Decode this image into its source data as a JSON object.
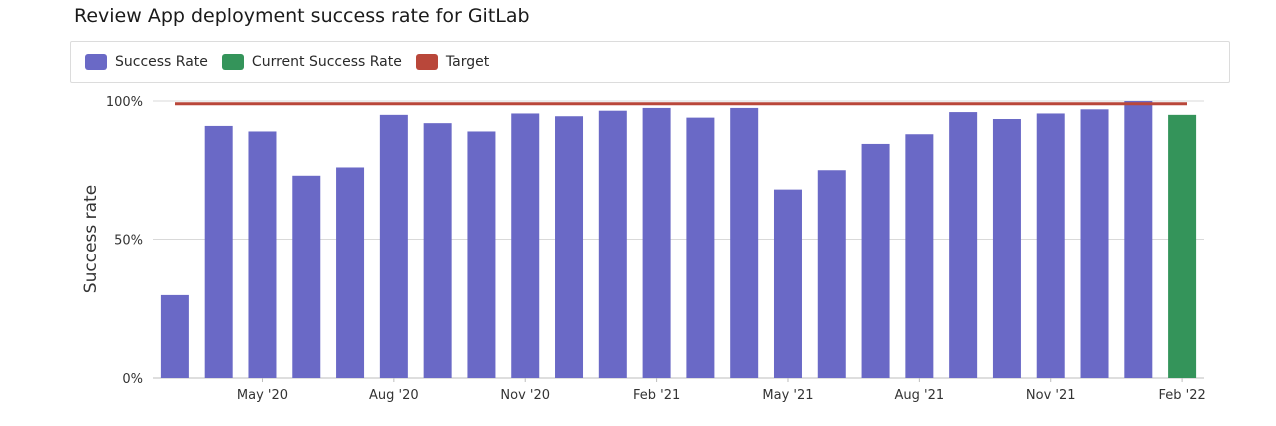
{
  "chart_data": {
    "type": "bar",
    "title": "Review App deployment success rate for GitLab",
    "xlabel": "",
    "ylabel": "Success rate",
    "ylim": [
      0,
      100
    ],
    "y_ticks": [
      {
        "value": 0,
        "label": "0%"
      },
      {
        "value": 50,
        "label": "50%"
      },
      {
        "value": 100,
        "label": "100%"
      }
    ],
    "grid": true,
    "legend": "top",
    "legend_entries": [
      {
        "name": "Success Rate",
        "color": "#6a69c6"
      },
      {
        "name": "Current Success Rate",
        "color": "#34945a"
      },
      {
        "name": "Target",
        "color": "#b9473a"
      }
    ],
    "categories": [
      "Mar '20",
      "Apr '20",
      "May '20",
      "Jun '20",
      "Jul '20",
      "Aug '20",
      "Sep '20",
      "Oct '20",
      "Nov '20",
      "Dec '20",
      "Jan '21",
      "Feb '21",
      "Mar '21",
      "Apr '21",
      "May '21",
      "Jun '21",
      "Jul '21",
      "Aug '21",
      "Sep '21",
      "Oct '21",
      "Nov '21",
      "Dec '21",
      "Jan '22",
      "Feb '22"
    ],
    "x_tick_labels": [
      {
        "index": 2,
        "label": "May '20"
      },
      {
        "index": 5,
        "label": "Aug '20"
      },
      {
        "index": 8,
        "label": "Nov '20"
      },
      {
        "index": 11,
        "label": "Feb '21"
      },
      {
        "index": 14,
        "label": "May '21"
      },
      {
        "index": 17,
        "label": "Aug '21"
      },
      {
        "index": 20,
        "label": "Nov '21"
      },
      {
        "index": 23,
        "label": "Feb '22"
      }
    ],
    "series": [
      {
        "name": "Success Rate",
        "color": "#6a69c6",
        "values": [
          30,
          91,
          89,
          73,
          76,
          95,
          92,
          89,
          95.5,
          94.5,
          96.5,
          97.5,
          94,
          97.5,
          68,
          75,
          84.5,
          88,
          96,
          93.5,
          95.5,
          97,
          100,
          null
        ]
      },
      {
        "name": "Current Success Rate",
        "color": "#34945a",
        "values": [
          null,
          null,
          null,
          null,
          null,
          null,
          null,
          null,
          null,
          null,
          null,
          null,
          null,
          null,
          null,
          null,
          null,
          null,
          null,
          null,
          null,
          null,
          null,
          95
        ]
      }
    ],
    "target": {
      "name": "Target",
      "value": 99,
      "color": "#b9473a"
    }
  }
}
